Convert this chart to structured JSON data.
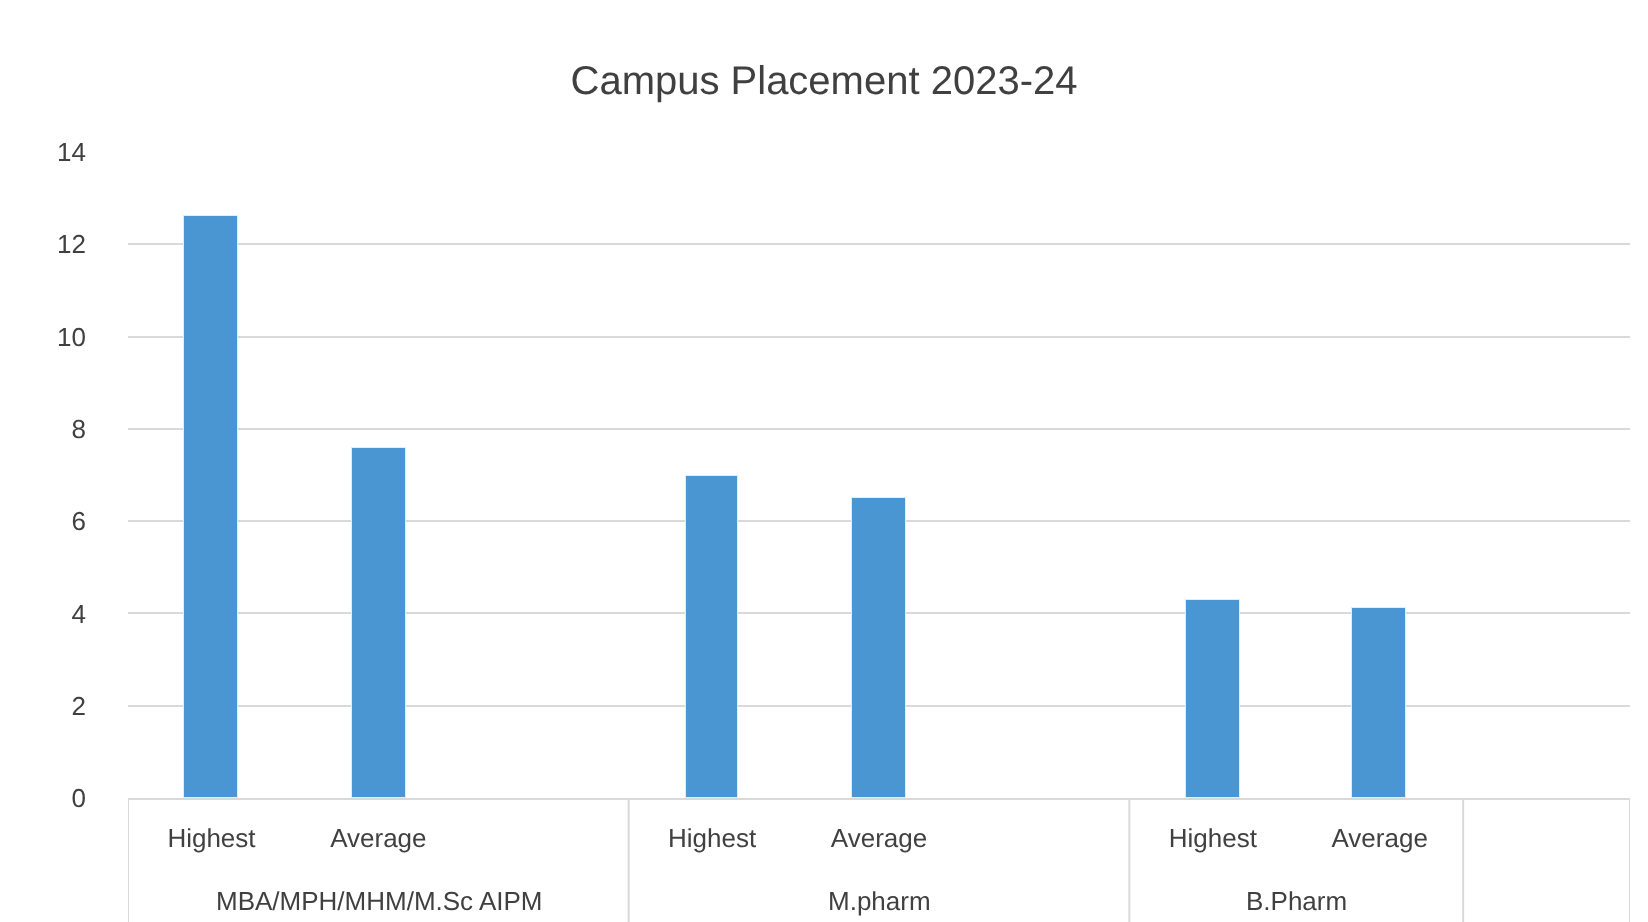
{
  "chart_data": {
    "type": "bar",
    "title": "Campus Placement 2023-24",
    "categories": [
      "Highest",
      "Average",
      null,
      "Highest",
      "Average",
      null,
      "Highest",
      "Average",
      null
    ],
    "values": [
      12.6,
      7.6,
      null,
      7.0,
      6.5,
      null,
      4.3,
      4.1,
      null
    ],
    "color": "#4a96d2",
    "ylim": [
      0,
      14
    ],
    "yticks": [
      0,
      2,
      4,
      6,
      8,
      10,
      12,
      14
    ],
    "grid": "y",
    "annotations": [
      "MBA/MPH/MHM/M.Sc AIPM",
      "M.pharm",
      "B.Pharm"
    ]
  }
}
